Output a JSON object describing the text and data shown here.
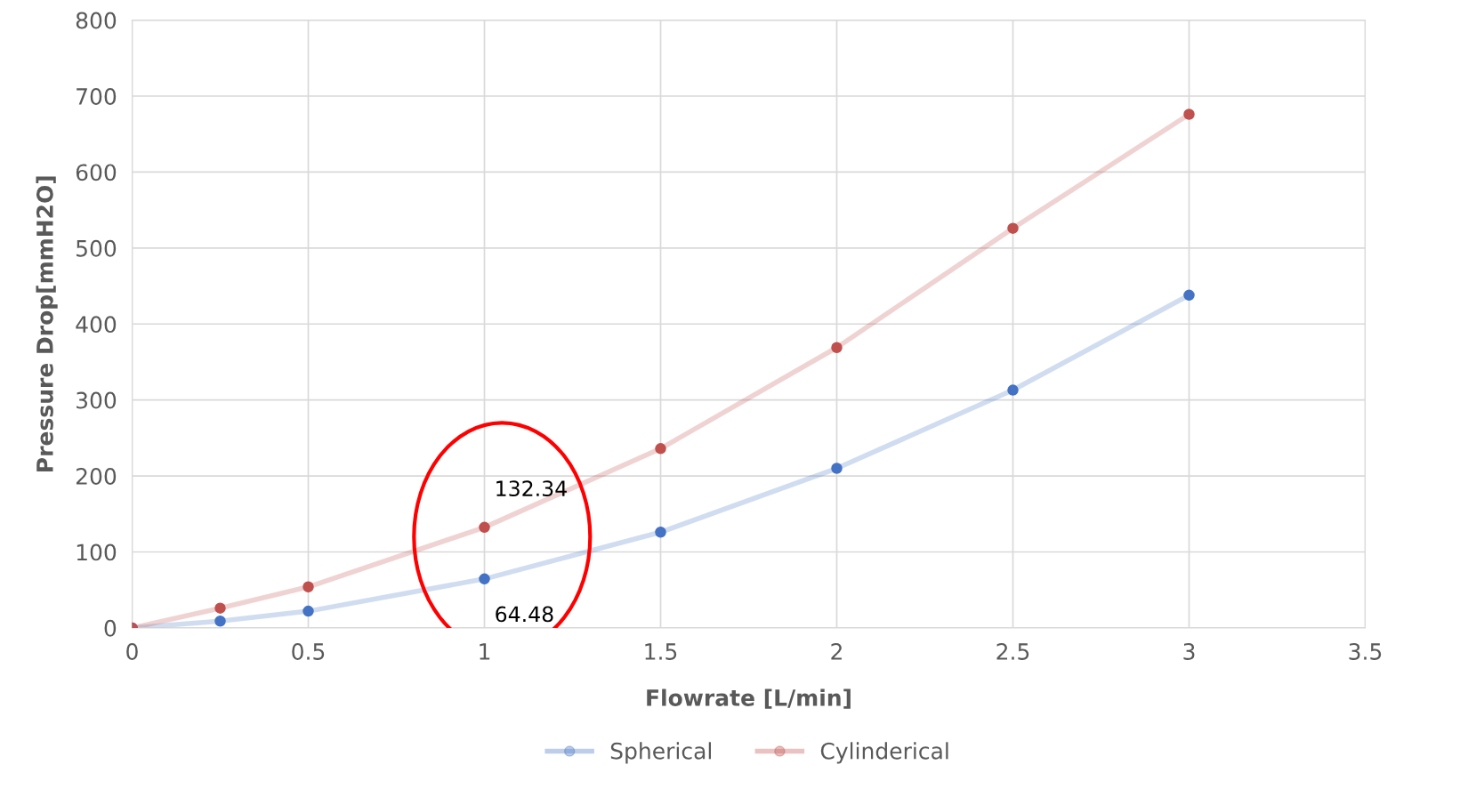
{
  "chart_data": {
    "type": "line",
    "xlabel": "Flowrate [L/min]",
    "ylabel": "Pressure Drop[mmH2O]",
    "series": [
      {
        "name": "Spherical",
        "color": "#4472c4",
        "x": [
          0,
          0.25,
          0.5,
          1,
          1.5,
          2,
          2.5,
          3
        ],
        "values": [
          0,
          9,
          22,
          64.48,
          126,
          210,
          313,
          438
        ]
      },
      {
        "name": "Cylinderical",
        "color": "#c0504d",
        "x": [
          0,
          0.25,
          0.5,
          1,
          1.5,
          2,
          2.5,
          3
        ],
        "values": [
          0,
          26,
          54,
          132.34,
          236,
          369,
          526,
          676
        ]
      }
    ],
    "annotations": [
      {
        "text": "132.34",
        "x": 1,
        "y": 132.34
      },
      {
        "text": "64.48",
        "x": 1,
        "y": 64.48
      }
    ],
    "xlim": [
      0,
      3.5
    ],
    "xticks": [
      0,
      0.5,
      1,
      1.5,
      2,
      2.5,
      3,
      3.5
    ],
    "ylim": [
      0,
      800
    ],
    "yticks": [
      0,
      100,
      200,
      300,
      400,
      500,
      600,
      700,
      800
    ],
    "grid": true,
    "legend": "bottom",
    "marker": "circle",
    "line_style": "solid"
  }
}
